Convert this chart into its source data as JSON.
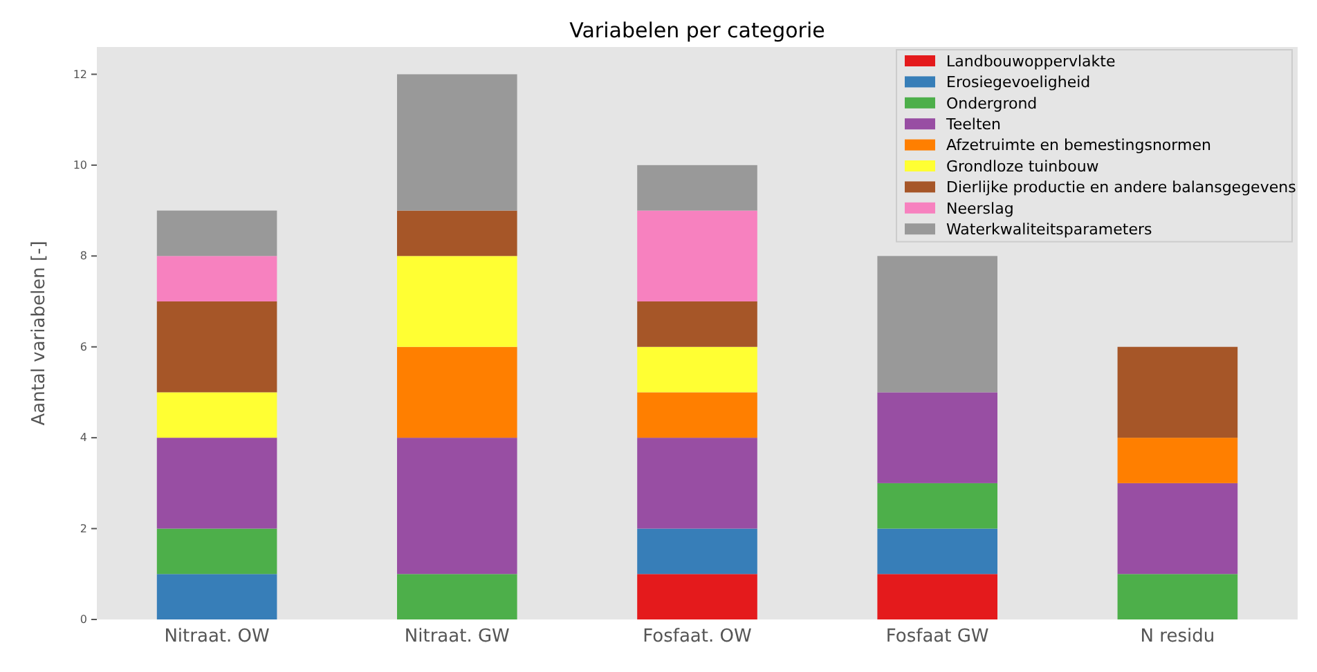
{
  "chart_data": {
    "type": "bar",
    "title": "Variabelen per categorie",
    "ylabel": "Aantal variabelen [-]",
    "stacked": true,
    "legend": "top right",
    "grid": false,
    "categories": [
      "Nitraat. OW",
      "Nitraat. GW",
      "Fosfaat. OW",
      "Fosfaat GW",
      "N residu"
    ],
    "ylim": [
      0,
      12.6
    ],
    "yticks": [
      0,
      2,
      4,
      6,
      8,
      10,
      12
    ],
    "series": [
      {
        "name": "Landbouwoppervlakte",
        "color": "#e41a1c",
        "values": [
          0,
          0,
          1,
          1,
          0
        ]
      },
      {
        "name": "Erosiegevoeligheid",
        "color": "#377eb8",
        "values": [
          1,
          0,
          1,
          1,
          0
        ]
      },
      {
        "name": "Ondergrond",
        "color": "#4daf4a",
        "values": [
          1,
          1,
          0,
          1,
          1
        ]
      },
      {
        "name": "Teelten",
        "color": "#984ea3",
        "values": [
          2,
          3,
          2,
          2,
          2
        ]
      },
      {
        "name": "Afzetruimte en bemestingsnormen",
        "color": "#ff7f00",
        "values": [
          0,
          2,
          1,
          0,
          1
        ]
      },
      {
        "name": "Grondloze tuinbouw",
        "color": "#ffff33",
        "values": [
          1,
          2,
          1,
          0,
          0
        ]
      },
      {
        "name": "Dierlijke productie en andere balansgegevens",
        "color": "#a65628",
        "values": [
          2,
          1,
          1,
          0,
          2
        ]
      },
      {
        "name": "Neerslag",
        "color": "#f781bf",
        "values": [
          1,
          0,
          2,
          0,
          0
        ]
      },
      {
        "name": "Waterkwaliteitsparameters",
        "color": "#999999",
        "values": [
          1,
          3,
          1,
          3,
          0
        ]
      }
    ]
  }
}
